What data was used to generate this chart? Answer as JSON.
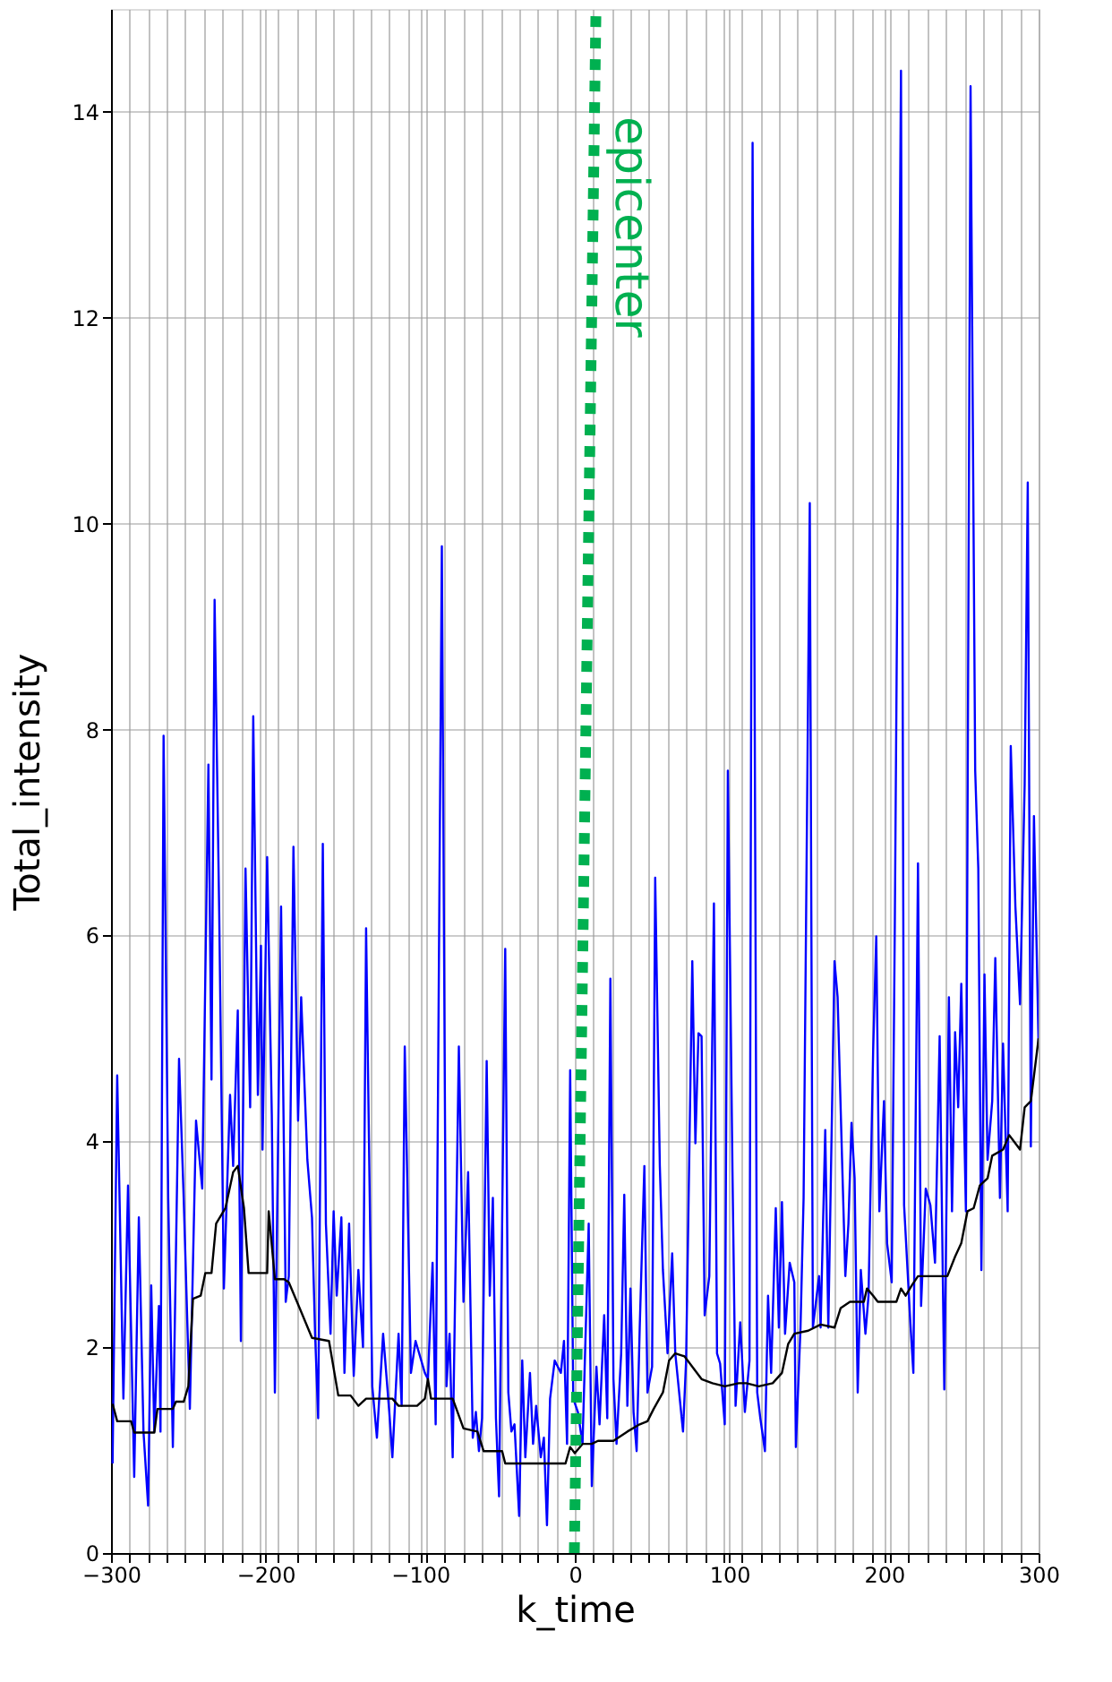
{
  "chart_data": {
    "type": "line",
    "xlabel": "k_time",
    "ylabel": "Total_intensity",
    "xlim": [
      -300,
      300
    ],
    "ylim": [
      0,
      15
    ],
    "xticks": [
      {
        "value": -300,
        "label": "−300"
      },
      {
        "value": -288,
        "label": null
      },
      {
        "value": -276,
        "label": null
      },
      {
        "value": -264,
        "label": null
      },
      {
        "value": -252,
        "label": null
      },
      {
        "value": -240,
        "label": null
      },
      {
        "value": -228,
        "label": null
      },
      {
        "value": -216,
        "label": null
      },
      {
        "value": -204,
        "label": null
      },
      {
        "value": -200,
        "label": "−200"
      },
      {
        "value": -192,
        "label": null
      },
      {
        "value": -180,
        "label": null
      },
      {
        "value": -168,
        "label": null
      },
      {
        "value": -156,
        "label": null
      },
      {
        "value": -144,
        "label": null
      },
      {
        "value": -132,
        "label": null
      },
      {
        "value": -120,
        "label": null
      },
      {
        "value": -108,
        "label": null
      },
      {
        "value": -100,
        "label": "−100"
      },
      {
        "value": -96,
        "label": null
      },
      {
        "value": -84,
        "label": null
      },
      {
        "value": -72,
        "label": null
      },
      {
        "value": -60,
        "label": null
      },
      {
        "value": -48,
        "label": null
      },
      {
        "value": -36,
        "label": null
      },
      {
        "value": -24,
        "label": null
      },
      {
        "value": -12,
        "label": null
      },
      {
        "value": 0,
        "label": "0"
      },
      {
        "value": 12,
        "label": null
      },
      {
        "value": 24,
        "label": null
      },
      {
        "value": 36,
        "label": null
      },
      {
        "value": 48,
        "label": null
      },
      {
        "value": 60,
        "label": null
      },
      {
        "value": 72,
        "label": null
      },
      {
        "value": 84,
        "label": null
      },
      {
        "value": 96,
        "label": null
      },
      {
        "value": 100,
        "label": "100"
      },
      {
        "value": 108,
        "label": null
      },
      {
        "value": 120,
        "label": null
      },
      {
        "value": 132,
        "label": null
      },
      {
        "value": 144,
        "label": null
      },
      {
        "value": 156,
        "label": null
      },
      {
        "value": 168,
        "label": null
      },
      {
        "value": 180,
        "label": null
      },
      {
        "value": 192,
        "label": null
      },
      {
        "value": 200,
        "label": "200"
      },
      {
        "value": 204,
        "label": null
      },
      {
        "value": 216,
        "label": null
      },
      {
        "value": 228,
        "label": null
      },
      {
        "value": 240,
        "label": null
      },
      {
        "value": 252,
        "label": null
      },
      {
        "value": 264,
        "label": null
      },
      {
        "value": 276,
        "label": null
      },
      {
        "value": 288,
        "label": null
      },
      {
        "value": 300,
        "label": "300"
      }
    ],
    "yticks": [
      0,
      2,
      4,
      6,
      8,
      10,
      12,
      14
    ],
    "grid": true,
    "series": [
      {
        "color": "#0000ff",
        "x": [
          -299,
          -296,
          -292,
          -289,
          -285,
          -282,
          -279,
          -276,
          -274,
          -272,
          -269,
          -268,
          -266,
          -263,
          -260,
          -256,
          -253,
          -249,
          -245,
          -241,
          -237,
          -235,
          -233,
          -230,
          -227,
          -223,
          -221,
          -218,
          -216,
          -213,
          -210,
          -208,
          -205,
          -203,
          -202,
          -199,
          -196,
          -194,
          -190,
          -187,
          -185,
          -182,
          -179,
          -177,
          -173,
          -170,
          -168,
          -166,
          -163,
          -161,
          -158,
          -156,
          -154,
          -151,
          -149,
          -146,
          -143,
          -140,
          -137,
          -135,
          -131,
          -128,
          -124,
          -120,
          -118,
          -114,
          -112,
          -110,
          -106,
          -103,
          -97,
          -95,
          -92,
          -90,
          -86,
          -83,
          -81,
          -79,
          -75,
          -72,
          -69,
          -66,
          -64,
          -62,
          -60,
          -57,
          -55,
          -53,
          -51,
          -49,
          -45,
          -43,
          -41,
          -39,
          -36,
          -34,
          -32,
          -29,
          -27,
          -25,
          -22,
          -20,
          -18,
          -16,
          -13,
          -9,
          -7,
          -5,
          -3,
          -1,
          2,
          5,
          9,
          11,
          14,
          16,
          19,
          21,
          23,
          25,
          27,
          30,
          32,
          34,
          36,
          38,
          40,
          42,
          45,
          47,
          50,
          52,
          55,
          57,
          60,
          63,
          65,
          70,
          72,
          76,
          78,
          80,
          82,
          84,
          87,
          90,
          92,
          94,
          97,
          99,
          102,
          104,
          107,
          110,
          113,
          115,
          118,
          120,
          123,
          125,
          127,
          130,
          132,
          134,
          136,
          139,
          142,
          143,
          146,
          148,
          152,
          154,
          158,
          159,
          162,
          164,
          168,
          170,
          173,
          175,
          177,
          179,
          181,
          183,
          185,
          188,
          190,
          193,
          195,
          197,
          200,
          202,
          205,
          207,
          211,
          213,
          217,
          219,
          222,
          224,
          227,
          230,
          233,
          236,
          239,
          242,
          244,
          246,
          248,
          250,
          253,
          256,
          259,
          261,
          263,
          265,
          267,
          270,
          272,
          275,
          277,
          280,
          282,
          285,
          288,
          291,
          293,
          295,
          297,
          300
        ],
        "values": [
          0.87,
          4.64,
          1.5,
          3.57,
          0.74,
          3.26,
          1.18,
          0.46,
          2.6,
          1.18,
          2.4,
          1.18,
          7.94,
          3.45,
          1.03,
          4.8,
          3.45,
          1.4,
          4.2,
          3.54,
          7.66,
          4.6,
          9.26,
          6.2,
          2.57,
          4.45,
          3.76,
          5.27,
          2.06,
          6.65,
          4.33,
          8.13,
          4.45,
          5.9,
          3.92,
          6.76,
          4.26,
          1.56,
          6.28,
          2.44,
          2.69,
          6.86,
          4.2,
          5.4,
          3.82,
          3.26,
          2.13,
          1.31,
          6.89,
          3.2,
          2.13,
          3.32,
          2.5,
          3.26,
          1.75,
          3.2,
          1.72,
          2.75,
          2.0,
          6.07,
          1.62,
          1.12,
          2.13,
          1.37,
          0.93,
          2.13,
          1.43,
          4.92,
          1.75,
          2.06,
          1.75,
          1.69,
          2.82,
          1.25,
          9.78,
          1.62,
          2.13,
          0.93,
          4.92,
          2.44,
          3.7,
          1.12,
          1.37,
          0.99,
          1.31,
          4.78,
          2.5,
          3.45,
          1.31,
          0.55,
          5.87,
          1.56,
          1.18,
          1.25,
          0.36,
          1.87,
          0.93,
          1.75,
          1.06,
          1.43,
          0.93,
          1.12,
          0.27,
          1.5,
          1.87,
          1.75,
          2.06,
          1.06,
          4.69,
          1.5,
          1.37,
          1.06,
          3.2,
          0.65,
          1.81,
          1.25,
          2.31,
          1.31,
          5.58,
          1.69,
          1.06,
          1.94,
          3.48,
          1.43,
          2.57,
          1.37,
          0.99,
          2.19,
          3.76,
          1.56,
          1.81,
          6.56,
          3.76,
          2.75,
          1.94,
          2.91,
          1.94,
          1.18,
          1.87,
          5.75,
          3.98,
          5.05,
          5.02,
          2.31,
          2.69,
          6.31,
          1.94,
          1.84,
          1.25,
          7.6,
          3.7,
          1.43,
          2.24,
          1.37,
          1.87,
          13.7,
          1.56,
          1.31,
          0.99,
          2.5,
          1.75,
          3.35,
          2.19,
          3.41,
          2.13,
          2.82,
          2.63,
          1.03,
          2.19,
          3.45,
          10.2,
          2.19,
          2.69,
          2.19,
          4.11,
          2.19,
          5.75,
          5.4,
          3.76,
          2.69,
          3.2,
          4.18,
          3.64,
          1.56,
          2.75,
          2.13,
          2.5,
          4.89,
          5.99,
          3.32,
          4.39,
          3.01,
          2.63,
          6.1,
          14.4,
          3.38,
          2.25,
          1.75,
          6.7,
          2.4,
          3.54,
          3.38,
          2.82,
          5.02,
          1.59,
          5.4,
          3.32,
          5.06,
          4.33,
          5.53,
          3.32,
          14.25,
          7.6,
          6.65,
          2.75,
          5.62,
          3.82,
          4.39,
          5.78,
          3.45,
          4.95,
          3.32,
          7.84,
          6.28,
          5.33,
          7.47,
          10.4,
          3.95,
          7.16,
          4.95
        ]
      },
      {
        "color": "#000000",
        "x": [
          -299,
          -296,
          -287,
          -285,
          -272,
          -270,
          -260,
          -258,
          -253,
          -250,
          -247,
          -242,
          -239,
          -235,
          -232,
          -226,
          -221,
          -218,
          -214,
          -211,
          -199,
          -198,
          -194,
          -188,
          -185,
          -178,
          -170,
          -159,
          -153,
          -145,
          -140,
          -135,
          -118,
          -114,
          -102,
          -97,
          -95,
          -93,
          -79,
          -72,
          -63,
          -59,
          -47,
          -45,
          -6,
          -3,
          0,
          5,
          11,
          15,
          25,
          34,
          42,
          47,
          51,
          57,
          61,
          65,
          71,
          76,
          82,
          89,
          97,
          106,
          111,
          119,
          128,
          134,
          138,
          142,
          151,
          159,
          168,
          172,
          178,
          187,
          189,
          193,
          196,
          208,
          211,
          214,
          218,
          222,
          241,
          246,
          250,
          254,
          258,
          262,
          267,
          270,
          277,
          281,
          288,
          291,
          295,
          300
        ],
        "values": [
          1.45,
          1.28,
          1.28,
          1.17,
          1.17,
          1.4,
          1.4,
          1.47,
          1.47,
          1.62,
          2.47,
          2.5,
          2.72,
          2.72,
          3.2,
          3.35,
          3.7,
          3.76,
          3.35,
          2.72,
          2.72,
          3.32,
          2.66,
          2.66,
          2.63,
          2.38,
          2.09,
          2.06,
          1.53,
          1.53,
          1.43,
          1.5,
          1.5,
          1.43,
          1.43,
          1.5,
          1.69,
          1.5,
          1.5,
          1.21,
          1.18,
          0.99,
          0.99,
          0.87,
          0.87,
          1.03,
          0.97,
          1.06,
          1.06,
          1.09,
          1.09,
          1.18,
          1.25,
          1.28,
          1.4,
          1.56,
          1.87,
          1.94,
          1.91,
          1.81,
          1.69,
          1.65,
          1.62,
          1.65,
          1.65,
          1.62,
          1.65,
          1.75,
          2.03,
          2.13,
          2.16,
          2.22,
          2.19,
          2.38,
          2.44,
          2.44,
          2.57,
          2.5,
          2.44,
          2.44,
          2.57,
          2.5,
          2.6,
          2.69,
          2.69,
          2.88,
          3.01,
          3.32,
          3.35,
          3.57,
          3.64,
          3.86,
          3.92,
          4.06,
          3.92,
          4.33,
          4.39,
          5.0
        ]
      },
      {
        "name": "epicenter",
        "color": "#00b050",
        "line_style": "dotted",
        "x": [
          -0.3,
          13.7
        ],
        "values": [
          0,
          15
        ]
      }
    ]
  }
}
